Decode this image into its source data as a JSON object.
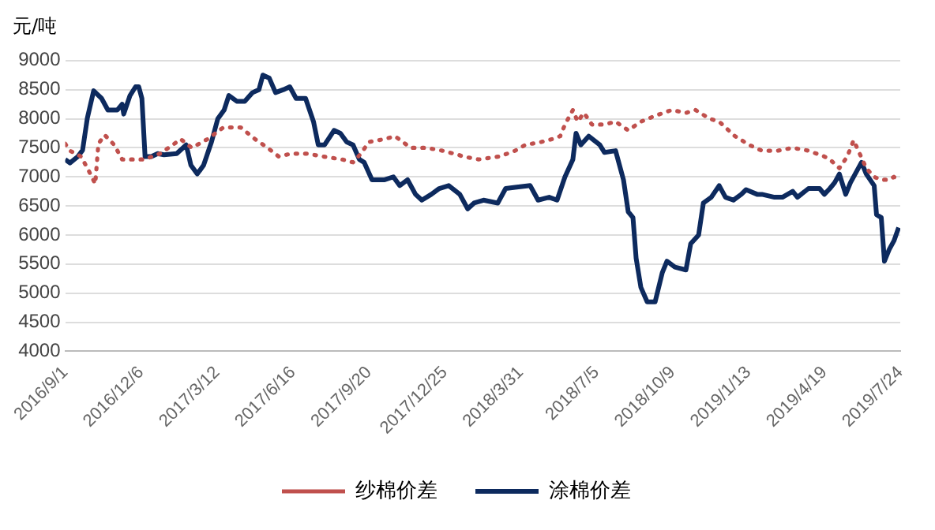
{
  "chart_data": {
    "type": "line",
    "ylabel": "元/吨",
    "ylim": [
      4000,
      9000
    ],
    "yticks": [
      4000,
      4500,
      5000,
      5500,
      6000,
      6500,
      7000,
      7500,
      8000,
      8500,
      9000
    ],
    "xlim": [
      "2016-09-01",
      "2019-07-24"
    ],
    "xticks": [
      {
        "value": "2016-09-01",
        "label": "2016/9/1"
      },
      {
        "value": "2016-12-06",
        "label": "2016/12/6"
      },
      {
        "value": "2017-03-12",
        "label": "2017/3/12"
      },
      {
        "value": "2017-06-16",
        "label": "2017/6/16"
      },
      {
        "value": "2017-09-20",
        "label": "2017/9/20"
      },
      {
        "value": "2017-12-25",
        "label": "2017/12/25"
      },
      {
        "value": "2018-03-31",
        "label": "2018/3/31"
      },
      {
        "value": "2018-07-05",
        "label": "2018/7/5"
      },
      {
        "value": "2018-10-09",
        "label": "2018/10/9"
      },
      {
        "value": "2019-01-13",
        "label": "2019/1/13"
      },
      {
        "value": "2019-04-19",
        "label": "2019/4/19"
      },
      {
        "value": "2019-07-24",
        "label": "2019/7/24"
      }
    ],
    "grid": "y",
    "legend": "bottom",
    "marker": "none",
    "series": [
      {
        "name": "纱棉价差",
        "color": "#c0504d",
        "line_style": "dotted",
        "x": [
          "2016-09-01",
          "2016-09-07",
          "2016-09-21",
          "2016-10-01",
          "2016-10-09",
          "2016-10-13",
          "2016-10-21",
          "2016-11-02",
          "2016-11-12",
          "2016-11-26",
          "2016-12-10",
          "2016-12-30",
          "2017-01-15",
          "2017-01-25",
          "2017-02-08",
          "2017-02-28",
          "2017-03-20",
          "2017-04-11",
          "2017-04-29",
          "2017-05-15",
          "2017-05-29",
          "2017-06-14",
          "2017-07-04",
          "2017-07-24",
          "2017-08-17",
          "2017-08-31",
          "2017-09-10",
          "2017-09-20",
          "2017-10-10",
          "2017-10-23",
          "2017-11-12",
          "2017-12-02",
          "2017-12-22",
          "2018-01-11",
          "2018-01-17",
          "2018-02-06",
          "2018-03-04",
          "2018-03-24",
          "2018-04-06",
          "2018-04-26",
          "2018-05-10",
          "2018-05-20",
          "2018-05-26",
          "2018-06-05",
          "2018-06-11",
          "2018-06-19",
          "2018-06-29",
          "2018-07-15",
          "2018-07-29",
          "2018-08-14",
          "2018-08-30",
          "2018-09-17",
          "2018-10-08",
          "2018-10-26",
          "2018-11-07",
          "2018-11-25",
          "2018-12-07",
          "2018-12-27",
          "2019-01-14",
          "2019-01-30",
          "2019-02-19",
          "2019-03-10",
          "2019-03-30",
          "2019-04-19",
          "2019-04-26",
          "2019-05-08",
          "2019-05-18",
          "2019-05-26",
          "2019-06-01",
          "2019-06-11",
          "2019-06-21",
          "2019-06-30",
          "2019-07-10",
          "2019-07-16",
          "2019-07-24"
        ],
        "values": [
          7570,
          7450,
          7350,
          7100,
          6880,
          7570,
          7720,
          7550,
          7300,
          7300,
          7300,
          7400,
          7550,
          7650,
          7500,
          7650,
          7850,
          7850,
          7650,
          7500,
          7350,
          7400,
          7400,
          7350,
          7300,
          7250,
          7400,
          7600,
          7650,
          7700,
          7500,
          7500,
          7450,
          7380,
          7350,
          7300,
          7350,
          7450,
          7550,
          7600,
          7650,
          7700,
          7900,
          8150,
          7950,
          8100,
          7900,
          7900,
          7950,
          7800,
          7950,
          8050,
          8150,
          8100,
          8150,
          8000,
          7950,
          7700,
          7550,
          7450,
          7450,
          7500,
          7450,
          7350,
          7300,
          7150,
          7350,
          7630,
          7450,
          7150,
          7000,
          6950,
          6950,
          7000,
          6920
        ]
      },
      {
        "name": "涂棉价差",
        "color": "#0d2a5e",
        "line_style": "solid",
        "x": [
          "2016-09-01",
          "2016-09-07",
          "2016-09-17",
          "2016-09-23",
          "2016-09-29",
          "2016-10-07",
          "2016-10-17",
          "2016-10-25",
          "2016-11-06",
          "2016-11-12",
          "2016-11-14",
          "2016-11-22",
          "2016-11-29",
          "2016-12-03",
          "2016-12-07",
          "2016-12-11",
          "2016-12-19",
          "2016-12-27",
          "2017-01-04",
          "2017-01-20",
          "2017-02-01",
          "2017-02-07",
          "2017-02-15",
          "2017-02-23",
          "2017-03-05",
          "2017-03-13",
          "2017-03-21",
          "2017-03-27",
          "2017-04-06",
          "2017-04-16",
          "2017-04-26",
          "2017-05-04",
          "2017-05-09",
          "2017-05-17",
          "2017-05-25",
          "2017-06-04",
          "2017-06-12",
          "2017-06-20",
          "2017-07-02",
          "2017-07-12",
          "2017-07-18",
          "2017-07-26",
          "2017-08-07",
          "2017-08-15",
          "2017-08-23",
          "2017-08-31",
          "2017-09-08",
          "2017-09-14",
          "2017-09-24",
          "2017-10-10",
          "2017-10-21",
          "2017-10-29",
          "2017-11-08",
          "2017-11-18",
          "2017-11-26",
          "2017-12-08",
          "2017-12-18",
          "2017-12-30",
          "2018-01-13",
          "2018-01-23",
          "2018-01-31",
          "2018-02-12",
          "2018-03-02",
          "2018-03-12",
          "2018-03-24",
          "2018-04-12",
          "2018-04-22",
          "2018-05-06",
          "2018-05-16",
          "2018-05-26",
          "2018-06-05",
          "2018-06-09",
          "2018-06-15",
          "2018-06-25",
          "2018-07-09",
          "2018-07-15",
          "2018-07-29",
          "2018-08-08",
          "2018-08-14",
          "2018-08-20",
          "2018-08-24",
          "2018-08-30",
          "2018-09-07",
          "2018-09-17",
          "2018-09-26",
          "2018-10-02",
          "2018-10-12",
          "2018-10-26",
          "2018-11-01",
          "2018-11-11",
          "2018-11-17",
          "2018-11-27",
          "2018-12-07",
          "2018-12-15",
          "2018-12-25",
          "2019-01-04",
          "2019-01-10",
          "2019-01-24",
          "2019-01-30",
          "2019-02-15",
          "2019-02-25",
          "2019-03-10",
          "2019-03-16",
          "2019-03-30",
          "2019-04-13",
          "2019-04-19",
          "2019-04-26",
          "2019-05-02",
          "2019-05-08",
          "2019-05-16",
          "2019-05-22",
          "2019-06-05",
          "2019-06-11",
          "2019-06-21",
          "2019-06-24",
          "2019-06-30",
          "2019-07-04",
          "2019-07-10",
          "2019-07-16",
          "2019-07-22"
        ],
        "values": [
          7300,
          7240,
          7350,
          7460,
          8010,
          8480,
          8350,
          8150,
          8150,
          8250,
          8080,
          8400,
          8550,
          8550,
          8350,
          7350,
          7350,
          7400,
          7380,
          7400,
          7550,
          7200,
          7050,
          7200,
          7600,
          8000,
          8150,
          8400,
          8300,
          8300,
          8450,
          8500,
          8750,
          8700,
          8450,
          8500,
          8550,
          8350,
          8350,
          7950,
          7550,
          7550,
          7800,
          7750,
          7600,
          7550,
          7300,
          7250,
          6950,
          6950,
          7000,
          6850,
          6950,
          6700,
          6600,
          6700,
          6800,
          6850,
          6700,
          6450,
          6550,
          6600,
          6550,
          6800,
          6820,
          6850,
          6600,
          6650,
          6600,
          7000,
          7300,
          7750,
          7550,
          7700,
          7550,
          7420,
          7450,
          6950,
          6400,
          6300,
          5600,
          5100,
          4850,
          4850,
          5350,
          5550,
          5450,
          5400,
          5850,
          6000,
          6550,
          6650,
          6850,
          6650,
          6600,
          6700,
          6780,
          6700,
          6700,
          6650,
          6650,
          6750,
          6650,
          6800,
          6800,
          6700,
          6800,
          6900,
          7050,
          6700,
          6900,
          7250,
          7050,
          6850,
          6350,
          6300,
          5550,
          5750,
          5900,
          6130
        ]
      }
    ]
  }
}
